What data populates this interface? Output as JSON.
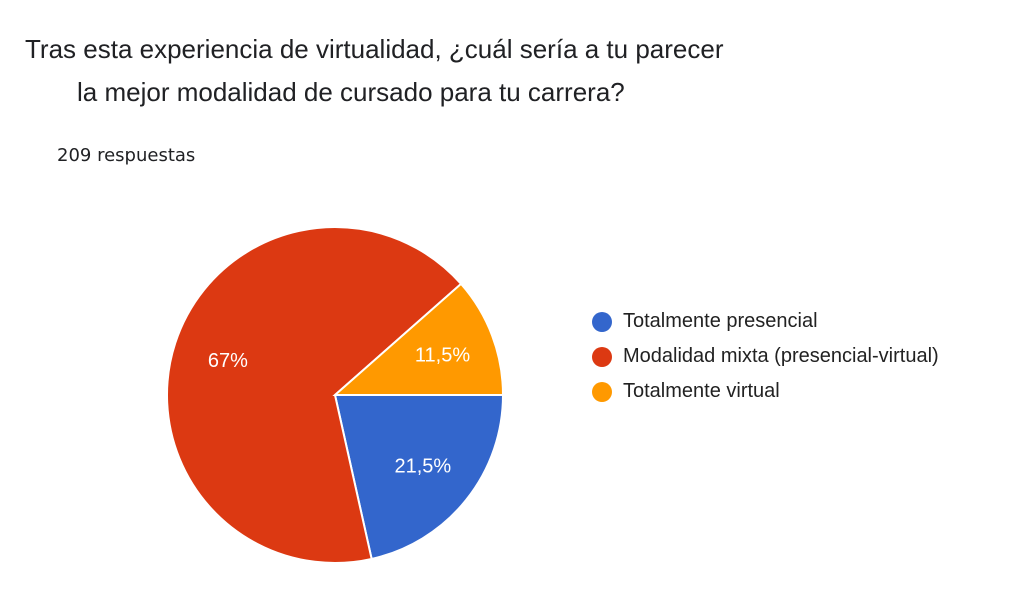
{
  "title_line1": "Tras esta experiencia de virtualidad, ¿cuál sería a tu parecer",
  "title_line2": "la mejor modalidad de cursado para tu carrera?",
  "responses": "209 respuestas",
  "chart_data": {
    "type": "pie",
    "categories": [
      "Totalmente presencial",
      "Modalidad mixta (presencial-virtual)",
      "Totalmente virtual"
    ],
    "values": [
      21.5,
      67,
      11.5
    ],
    "data_labels": [
      "21,5%",
      "67%",
      "11,5%"
    ],
    "colors": [
      "#3366cc",
      "#dc3912",
      "#ff9900"
    ],
    "legend_position": "right"
  }
}
